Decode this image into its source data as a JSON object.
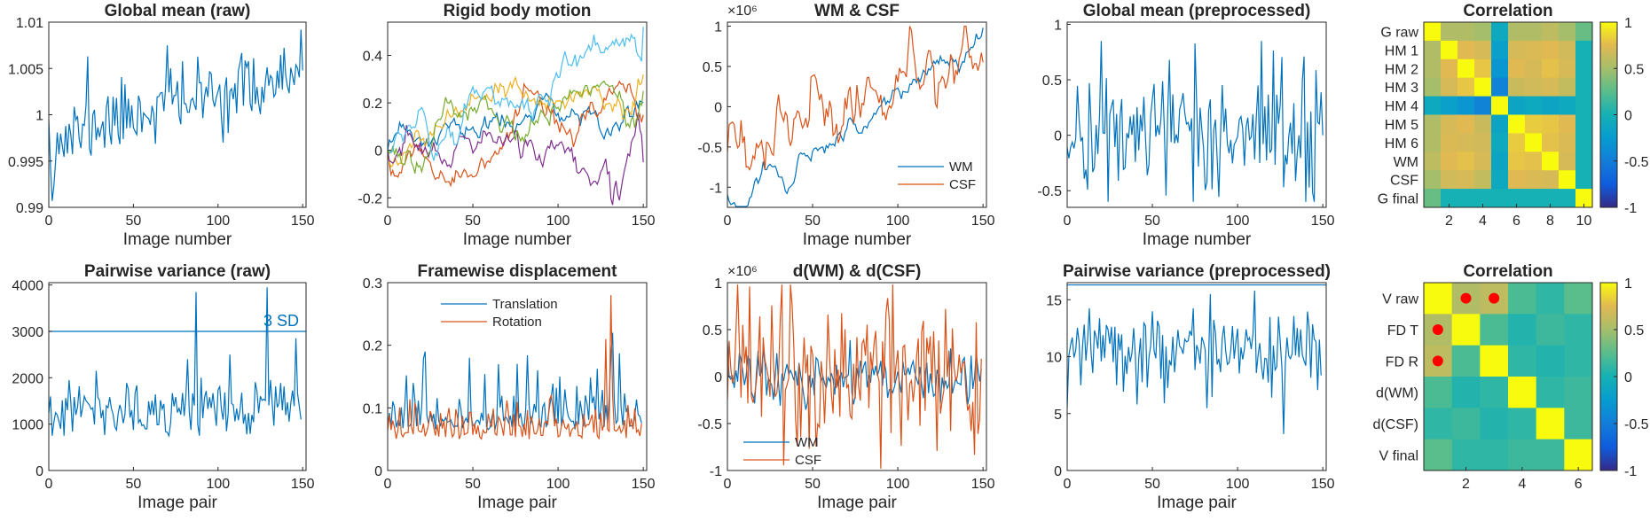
{
  "colors": {
    "blue": "#0072BD",
    "orange": "#D95319",
    "yellow": "#EDB120",
    "purple": "#7E2F8E",
    "green": "#77AC30",
    "cyan": "#4DBEEE",
    "red": "#A2142F",
    "marker": "#ff0000"
  },
  "chart_data": [
    {
      "type": "line",
      "title": "Global mean (raw)",
      "xlabel": "Image number",
      "xlim": [
        0,
        152
      ],
      "ylim": [
        0.99,
        1.01
      ],
      "xticks": [
        "0",
        "50",
        "100",
        "150"
      ],
      "yticks": [
        "0.99",
        "0.995",
        "1",
        "1.005",
        "1.01"
      ],
      "gen": {
        "n": 151,
        "seed": 11,
        "style": "walkup",
        "lo": 0.9905,
        "hi": 1.0085,
        "start": 0.9995,
        "end": 1.0095
      },
      "series": [
        {
          "color": "blue"
        }
      ]
    },
    {
      "type": "line",
      "title": "Rigid body motion",
      "xlabel": "Image number",
      "xlim": [
        0,
        152
      ],
      "ylim": [
        -0.24,
        0.54
      ],
      "xticks": [
        "0",
        "50",
        "100",
        "150"
      ],
      "yticks": [
        "-0.2",
        "0",
        "0.2",
        "0.4"
      ],
      "gen": {
        "n": 151,
        "seed": 23,
        "style": "multiwalk"
      },
      "series": [
        {
          "color": "blue",
          "end": 0.2
        },
        {
          "color": "orange",
          "end": 0.15
        },
        {
          "color": "yellow",
          "end": 0.32
        },
        {
          "color": "purple",
          "end": -0.05
        },
        {
          "color": "green",
          "end": 0.25
        },
        {
          "color": "cyan",
          "end": 0.52
        }
      ]
    },
    {
      "type": "line",
      "title": "WM & CSF",
      "xlabel": "Image number",
      "exponent": "×10⁶",
      "xlim": [
        0,
        152
      ],
      "ylim": [
        -1.25,
        1.05
      ],
      "xticks": [
        "0",
        "50",
        "100",
        "150"
      ],
      "yticks": [
        "-1",
        "-0.5",
        "0",
        "0.5",
        "1"
      ],
      "legend": {
        "position": "lower-right",
        "entries": [
          "WM",
          "CSF"
        ]
      },
      "gen": {
        "n": 151,
        "seed": 37,
        "style": "trend2"
      },
      "series": [
        {
          "name": "WM",
          "color": "blue"
        },
        {
          "name": "CSF",
          "color": "orange"
        }
      ]
    },
    {
      "type": "line",
      "title": "Global mean (preprocessed)",
      "xlabel": "Image number",
      "xlim": [
        0,
        152
      ],
      "ylim": [
        -0.65,
        1.02
      ],
      "xticks": [
        "0",
        "50",
        "100",
        "150"
      ],
      "yticks": [
        "-0.5",
        "0",
        "0.5",
        "1"
      ],
      "gen": {
        "n": 151,
        "seed": 41,
        "style": "noise",
        "lo": -0.6,
        "hi": 0.85,
        "mean": 0.05,
        "sd": 0.28
      },
      "series": [
        {
          "color": "blue"
        }
      ]
    },
    {
      "type": "heatmap",
      "title": "Correlation",
      "labels": [
        "G raw",
        "HM 1",
        "HM 2",
        "HM 3",
        "HM 4",
        "HM 5",
        "HM 6",
        "WM",
        "CSF",
        "G final"
      ],
      "xticks": [
        "2",
        "4",
        "6",
        "8",
        "10"
      ],
      "colorbar": {
        "range": [
          -1,
          1
        ],
        "ticks": [
          "1",
          "0.5",
          "0",
          "-0.5",
          "-1"
        ]
      },
      "matrix": [
        [
          1.0,
          0.55,
          0.55,
          0.5,
          -0.1,
          0.55,
          0.55,
          0.6,
          0.5,
          0.3
        ],
        [
          0.55,
          1.0,
          0.75,
          0.7,
          -0.2,
          0.7,
          0.72,
          0.75,
          0.68,
          0.0
        ],
        [
          0.55,
          0.75,
          1.0,
          0.8,
          -0.3,
          0.75,
          0.7,
          0.78,
          0.7,
          0.0
        ],
        [
          0.5,
          0.7,
          0.8,
          1.0,
          -0.45,
          0.65,
          0.68,
          0.7,
          0.62,
          0.0
        ],
        [
          -0.1,
          -0.2,
          -0.3,
          -0.45,
          1.0,
          -0.15,
          -0.1,
          -0.15,
          -0.1,
          0.0
        ],
        [
          0.55,
          0.7,
          0.75,
          0.65,
          -0.15,
          1.0,
          0.82,
          0.8,
          0.75,
          0.0
        ],
        [
          0.55,
          0.72,
          0.7,
          0.68,
          -0.1,
          0.82,
          1.0,
          0.78,
          0.72,
          0.0
        ],
        [
          0.6,
          0.75,
          0.78,
          0.7,
          -0.15,
          0.8,
          0.78,
          1.0,
          0.7,
          0.0
        ],
        [
          0.5,
          0.68,
          0.7,
          0.62,
          -0.1,
          0.75,
          0.72,
          0.7,
          1.0,
          0.0
        ],
        [
          0.3,
          0.0,
          0.0,
          0.0,
          0.0,
          0.0,
          0.0,
          0.0,
          0.0,
          1.0
        ]
      ],
      "markers": []
    },
    {
      "type": "line",
      "title": "Pairwise variance (raw)",
      "xlabel": "Image pair",
      "xlim": [
        0,
        152
      ],
      "ylim": [
        0,
        4050
      ],
      "xticks": [
        "0",
        "50",
        "100",
        "150"
      ],
      "yticks": [
        "0",
        "1000",
        "2000",
        "3000",
        "4000"
      ],
      "hline": {
        "y": 3000,
        "label": "3 SD"
      },
      "gen": {
        "n": 150,
        "seed": 53,
        "style": "spiky",
        "base": 1250,
        "sd": 280,
        "lo": 750,
        "spikes": [
          [
            87,
            3850
          ],
          [
            129,
            3950
          ],
          [
            90,
            2000
          ],
          [
            107,
            2500
          ],
          [
            146,
            2850
          ],
          [
            82,
            2400
          ],
          [
            12,
            1950
          ],
          [
            28,
            2150
          ]
        ]
      },
      "series": [
        {
          "color": "blue"
        }
      ]
    },
    {
      "type": "line",
      "title": "Framewise displacement",
      "xlabel": "Image pair",
      "xlim": [
        0,
        152
      ],
      "ylim": [
        0,
        0.3
      ],
      "xticks": [
        "0",
        "50",
        "100",
        "150"
      ],
      "yticks": [
        "0",
        "0.1",
        "0.2",
        "0.3"
      ],
      "legend": {
        "position": "top-center",
        "entries": [
          "Translation",
          "Rotation"
        ]
      },
      "gen": {
        "n": 150,
        "seed": 67,
        "style": "fd"
      },
      "series": [
        {
          "name": "Translation",
          "color": "blue"
        },
        {
          "name": "Rotation",
          "color": "orange"
        }
      ]
    },
    {
      "type": "line",
      "title": "d(WM) & d(CSF)",
      "xlabel": "Image pair",
      "exponent": "×10⁶",
      "xlim": [
        0,
        152
      ],
      "ylim": [
        -1,
        1
      ],
      "xticks": [
        "0",
        "50",
        "100",
        "150"
      ],
      "yticks": [
        "-1",
        "-0.5",
        "0",
        "0.5",
        "1"
      ],
      "legend": {
        "position": "lower-left",
        "entries": [
          "WM",
          "CSF"
        ]
      },
      "gen": {
        "n": 150,
        "seed": 79,
        "style": "diff"
      },
      "series": [
        {
          "name": "WM",
          "color": "blue"
        },
        {
          "name": "CSF",
          "color": "orange"
        }
      ]
    },
    {
      "type": "line",
      "title": "Pairwise variance (preprocessed)",
      "xlabel": "Image pair",
      "xlim": [
        0,
        152
      ],
      "ylim": [
        0,
        16.5
      ],
      "xticks": [
        "0",
        "50",
        "100",
        "150"
      ],
      "yticks": [
        "0",
        "5",
        "10",
        "15"
      ],
      "hline": {
        "y": 16.3,
        "label": ""
      },
      "gen": {
        "n": 150,
        "seed": 91,
        "style": "noise",
        "lo": 3.5,
        "hi": 15.8,
        "mean": 10.5,
        "sd": 1.9,
        "start": 5.5,
        "dips": [
          [
            127,
            3.2
          ],
          [
            84,
            15.5
          ],
          [
            110,
            15.8
          ]
        ]
      },
      "series": [
        {
          "color": "blue"
        }
      ]
    },
    {
      "type": "heatmap",
      "title": "Correlation",
      "labels": [
        "V raw",
        "FD T",
        "FD R",
        "d(WM)",
        "d(CSF)",
        "V final"
      ],
      "xticks": [
        "2",
        "4",
        "6"
      ],
      "colorbar": {
        "range": [
          -1,
          1
        ],
        "ticks": [
          "1",
          "0.5",
          "0",
          "-0.5",
          "-1"
        ]
      },
      "matrix": [
        [
          1.0,
          0.55,
          0.6,
          0.2,
          0.1,
          0.25
        ],
        [
          0.55,
          1.0,
          0.2,
          0.05,
          0.15,
          0.1
        ],
        [
          0.6,
          0.2,
          1.0,
          0.1,
          0.05,
          0.1
        ],
        [
          0.2,
          0.05,
          0.1,
          1.0,
          0.1,
          0.15
        ],
        [
          0.1,
          0.15,
          0.05,
          0.1,
          1.0,
          0.15
        ],
        [
          0.25,
          0.1,
          0.1,
          0.15,
          0.15,
          1.0
        ]
      ],
      "markers": [
        [
          0,
          1
        ],
        [
          0,
          2
        ],
        [
          1,
          0
        ],
        [
          2,
          0
        ]
      ]
    }
  ]
}
